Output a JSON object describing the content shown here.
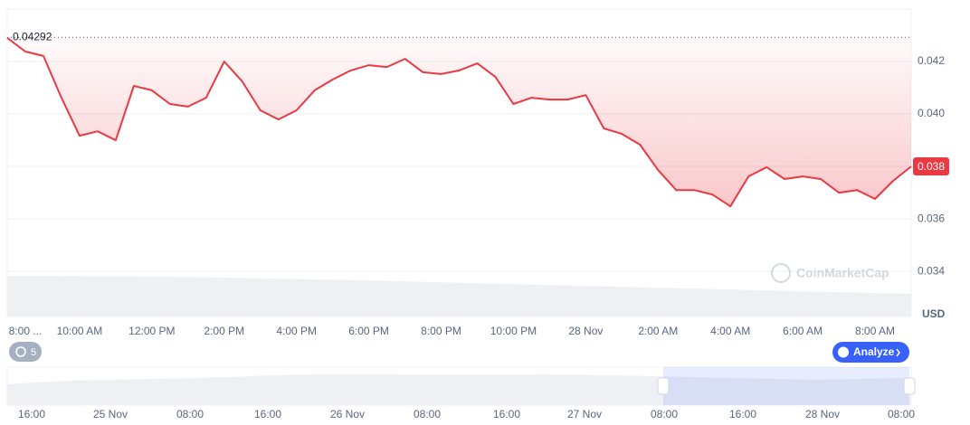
{
  "chart_data": {
    "type": "line",
    "categories": [
      "8:00 ...",
      null,
      null,
      null,
      "10:00 AM",
      null,
      null,
      null,
      "12:00 PM",
      null,
      null,
      null,
      "2:00 PM",
      null,
      null,
      null,
      "4:00 PM",
      null,
      null,
      null,
      "6:00 PM",
      null,
      null,
      null,
      "8:00 PM",
      null,
      null,
      null,
      "10:00 PM",
      null,
      null,
      null,
      "28 Nov",
      null,
      null,
      null,
      "2:00 AM",
      null,
      null,
      null,
      "4:00 AM",
      null,
      null,
      null,
      "6:00 AM",
      null,
      null,
      null,
      "8:00 AM",
      null,
      null
    ],
    "values": [
      0.0429,
      0.04238,
      0.04221,
      0.04062,
      0.03917,
      0.03934,
      0.039,
      0.04107,
      0.0409,
      0.04038,
      0.04028,
      0.04062,
      0.042,
      0.04124,
      0.04014,
      0.03979,
      0.04014,
      0.0409,
      0.04131,
      0.04166,
      0.04186,
      0.04179,
      0.0421,
      0.04159,
      0.04152,
      0.04166,
      0.04193,
      0.04141,
      0.04038,
      0.04062,
      0.04055,
      0.04055,
      0.04072,
      0.03945,
      0.03924,
      0.03883,
      0.03786,
      0.0371,
      0.0371,
      0.03693,
      0.03648,
      0.03762,
      0.03797,
      0.03752,
      0.03762,
      0.03752,
      0.037,
      0.0371,
      0.03676,
      0.03745,
      0.038
    ],
    "color": "#ea3943",
    "ylim": [
      0.03228,
      0.044
    ],
    "yticks": [
      0.034,
      0.036,
      0.038,
      {
        "value": 0.04,
        "label": "0.040"
      },
      0.042
    ],
    "y_unit": "USD",
    "grid": true,
    "reference_price": 0.04292,
    "current_price": 0.038
  },
  "watermark": "CoinMarketCap",
  "controls": {
    "zoom_badge": "5",
    "analyze_button": "Analyze"
  },
  "navigator_labels": [
    "16:00",
    "25 Nov",
    "08:00",
    "16:00",
    "26 Nov",
    "08:00",
    "16:00",
    "27 Nov",
    "08:00",
    "16:00",
    "28 Nov",
    "08:00"
  ]
}
